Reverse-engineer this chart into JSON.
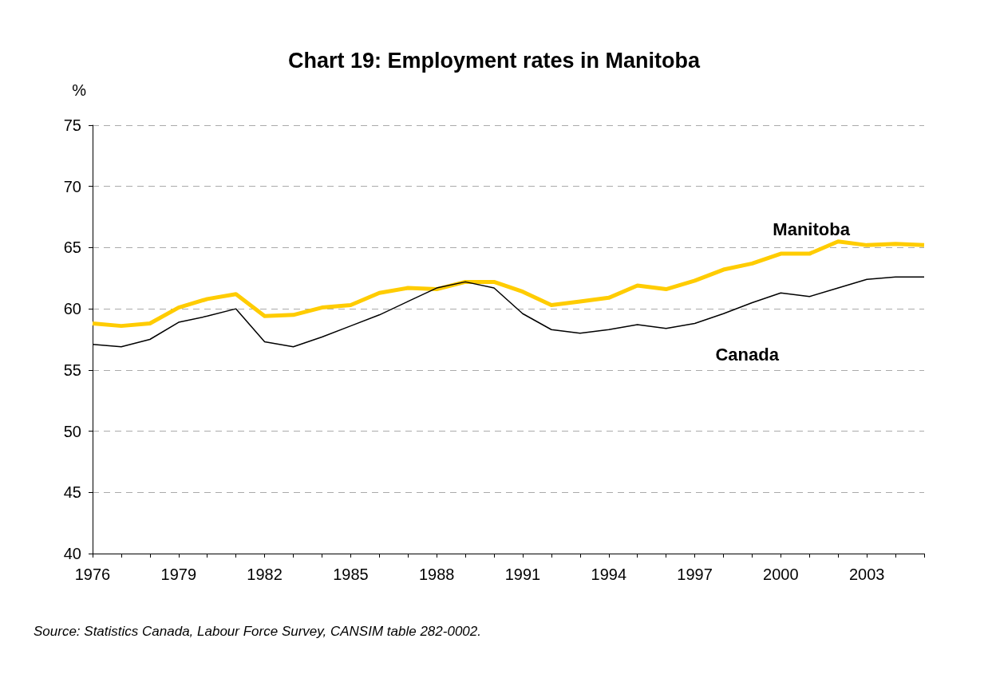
{
  "chart_data": {
    "type": "line",
    "title": "Chart 19: Employment rates in Manitoba",
    "ylabel": "%",
    "categories": [
      "1976",
      null,
      null,
      "1979",
      null,
      null,
      "1982",
      null,
      null,
      "1985",
      null,
      null,
      "1988",
      null,
      null,
      "1991",
      null,
      null,
      "1994",
      null,
      null,
      "1997",
      null,
      null,
      "2000",
      null,
      null,
      "2003",
      null,
      null
    ],
    "series": [
      {
        "name": "Manitoba",
        "color": "#ffcc00",
        "values": [
          58.8,
          58.6,
          58.8,
          60.1,
          60.8,
          61.2,
          59.4,
          59.5,
          60.1,
          60.3,
          61.3,
          61.7,
          61.6,
          62.2,
          62.2,
          61.4,
          60.3,
          60.6,
          60.9,
          61.9,
          61.6,
          62.3,
          63.2,
          63.7,
          64.5,
          64.5,
          65.5,
          65.2,
          65.3,
          65.2
        ]
      },
      {
        "name": "Canada",
        "color": "#000000",
        "values": [
          57.1,
          56.9,
          57.5,
          58.9,
          59.4,
          60.0,
          57.3,
          56.9,
          57.7,
          58.6,
          59.5,
          60.6,
          61.7,
          62.2,
          61.7,
          59.6,
          58.3,
          58.0,
          58.3,
          58.7,
          58.4,
          58.8,
          59.6,
          60.5,
          61.3,
          61.0,
          61.7,
          62.4,
          62.6,
          62.6
        ]
      }
    ],
    "ylim": [
      40,
      75
    ],
    "yticks": [
      40,
      45,
      50,
      55,
      60,
      65,
      70,
      75
    ],
    "grid": "y",
    "legend": false,
    "marker": "none",
    "line_style": "solid",
    "annotations": [
      "Source: Statistics Canada, Labour Force Survey, CANSIM table 282-0002."
    ]
  }
}
